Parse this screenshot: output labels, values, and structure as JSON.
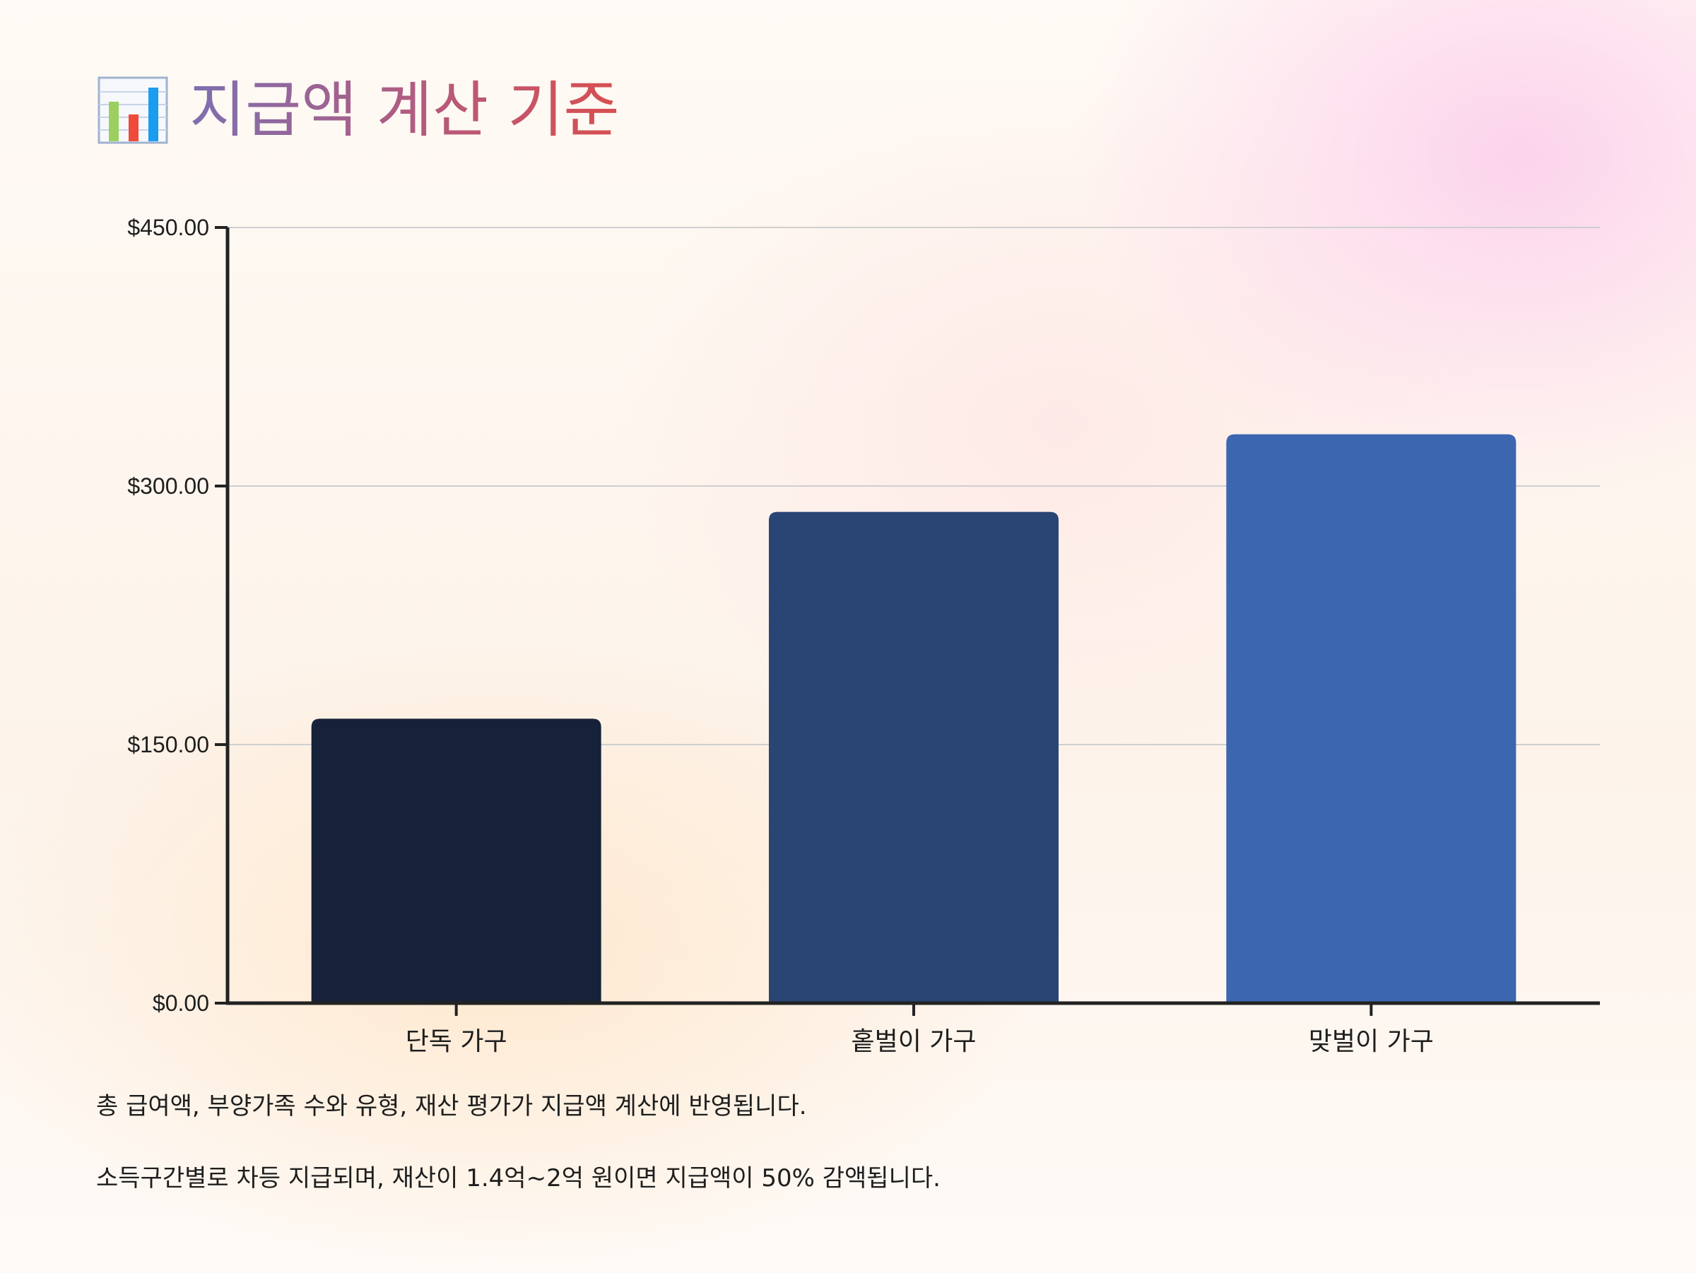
{
  "title": "지급액 계산 기준",
  "icon": "bar-chart-icon",
  "chart_data": {
    "type": "bar",
    "title": "지급액 계산 기준",
    "categories": [
      "단독 가구",
      "홑벌이 가구",
      "맞벌이 가구"
    ],
    "values": [
      165,
      285,
      330
    ],
    "ylim": [
      0,
      450
    ],
    "yticks": [
      0,
      150,
      300,
      450
    ],
    "ytick_labels": [
      "$0.00",
      "$150.00",
      "$300.00",
      "$450.00"
    ],
    "xlabel": "",
    "ylabel": "",
    "grid": true,
    "colors": [
      "#16213a",
      "#294574",
      "#3d66b0"
    ]
  },
  "notes": [
    "총 급여액, 부양가족 수와 유형, 재산 평가가 지급액 계산에 반영됩니다.",
    "소득구간별로 차등 지급되며, 재산이 1.4억~2억 원이면 지급액이 50% 감액됩니다."
  ]
}
